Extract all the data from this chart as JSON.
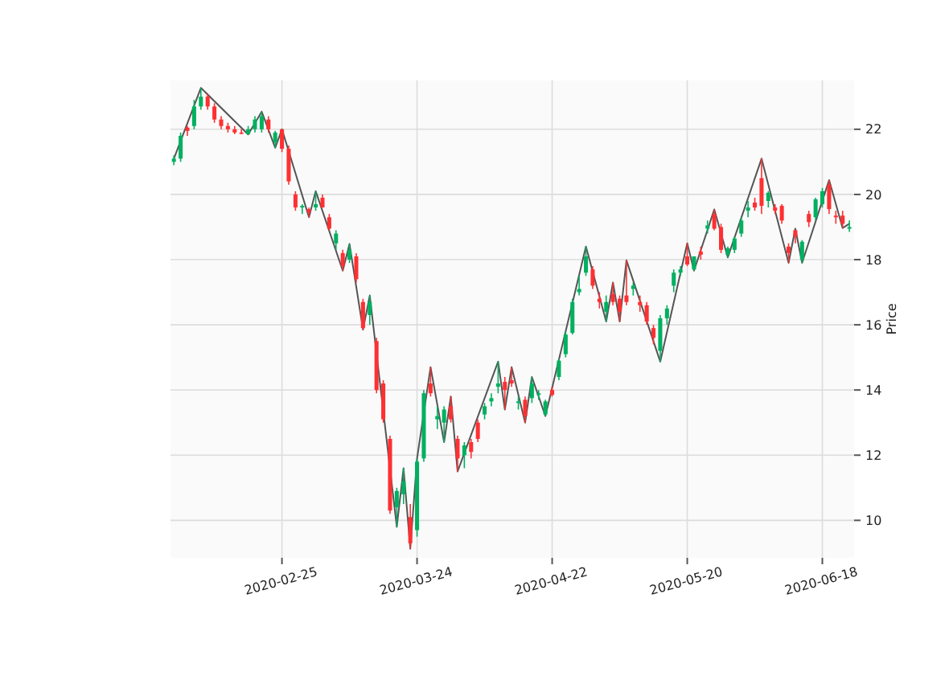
{
  "chart_data": {
    "type": "candlestick",
    "ylabel": "Price",
    "ylim": [
      8.85,
      23.5
    ],
    "yticks": [
      10,
      12,
      14,
      16,
      18,
      20,
      22
    ],
    "grid": true,
    "categories": [
      null,
      null,
      null,
      null,
      null,
      null,
      null,
      null,
      null,
      null,
      null,
      null,
      null,
      null,
      null,
      null,
      "2020-02-25",
      null,
      null,
      null,
      null,
      null,
      null,
      null,
      null,
      null,
      null,
      null,
      null,
      null,
      null,
      null,
      null,
      null,
      null,
      null,
      "2020-03-24",
      null,
      null,
      null,
      null,
      null,
      null,
      null,
      null,
      null,
      null,
      null,
      null,
      null,
      null,
      null,
      null,
      null,
      null,
      null,
      "2020-04-22",
      null,
      null,
      null,
      null,
      null,
      null,
      null,
      null,
      null,
      null,
      null,
      null,
      null,
      null,
      null,
      null,
      null,
      null,
      null,
      "2020-05-20",
      null,
      null,
      null,
      null,
      null,
      null,
      null,
      null,
      null,
      null,
      null,
      null,
      null,
      null,
      null,
      null,
      null,
      null,
      null,
      "2020-06-18",
      null,
      null,
      null,
      null
    ],
    "ohlc": [
      [
        21.0,
        21.2,
        20.9,
        21.1
      ],
      [
        21.1,
        21.9,
        21.0,
        21.8
      ],
      [
        22.05,
        22.1,
        21.8,
        21.95
      ],
      [
        22.1,
        22.9,
        22.0,
        22.7
      ],
      [
        22.7,
        23.27,
        22.6,
        23.0
      ],
      [
        23.0,
        23.1,
        22.6,
        22.7
      ],
      [
        22.7,
        22.8,
        22.2,
        22.3
      ],
      [
        22.3,
        22.4,
        22.0,
        22.1
      ],
      [
        22.1,
        22.2,
        21.9,
        22.0
      ],
      [
        22.0,
        22.1,
        21.85,
        21.9
      ],
      [
        21.9,
        22.0,
        21.85,
        21.88
      ],
      [
        21.85,
        22.1,
        21.84,
        22.0
      ],
      [
        22.0,
        22.4,
        21.9,
        22.3
      ],
      [
        22.0,
        22.54,
        21.9,
        22.4
      ],
      [
        22.3,
        22.4,
        21.9,
        22.0
      ],
      [
        21.6,
        21.95,
        21.43,
        21.9
      ],
      [
        22.0,
        22.0,
        21.3,
        21.4
      ],
      [
        21.4,
        21.5,
        20.3,
        20.4
      ],
      [
        20.0,
        20.1,
        19.5,
        19.6
      ],
      [
        19.6,
        19.7,
        19.4,
        19.65
      ],
      [
        19.55,
        19.6,
        19.3,
        19.45
      ],
      [
        19.6,
        20.1,
        19.5,
        19.7
      ],
      [
        19.9,
        20.0,
        19.6,
        19.6
      ],
      [
        19.3,
        19.4,
        18.9,
        18.95
      ],
      [
        18.5,
        18.9,
        18.3,
        18.8
      ],
      [
        18.2,
        18.3,
        17.66,
        17.8
      ],
      [
        18.0,
        18.48,
        17.9,
        18.3
      ],
      [
        18.1,
        18.2,
        17.3,
        17.4
      ],
      [
        16.7,
        16.8,
        15.85,
        15.9
      ],
      [
        16.3,
        16.9,
        16.0,
        16.7
      ],
      [
        15.5,
        15.6,
        13.9,
        14.0
      ],
      [
        14.2,
        14.3,
        13.0,
        13.1
      ],
      [
        12.5,
        12.6,
        10.2,
        10.3
      ],
      [
        10.4,
        11.0,
        9.8,
        10.9
      ],
      [
        10.8,
        11.6,
        10.5,
        11.2
      ],
      [
        10.1,
        10.5,
        9.13,
        9.3
      ],
      [
        9.7,
        11.9,
        9.5,
        11.8
      ],
      [
        11.9,
        14.0,
        11.8,
        13.9
      ],
      [
        14.2,
        14.7,
        13.8,
        13.9
      ],
      [
        13.1,
        13.5,
        12.8,
        13.2
      ],
      [
        13.0,
        13.5,
        12.4,
        13.4
      ],
      [
        13.5,
        13.8,
        13.0,
        13.1
      ],
      [
        12.5,
        12.6,
        11.5,
        11.9
      ],
      [
        12.0,
        12.4,
        11.6,
        12.3
      ],
      [
        12.4,
        12.5,
        11.9,
        12.1
      ],
      [
        13.0,
        13.1,
        12.4,
        12.5
      ],
      [
        13.25,
        13.6,
        13.1,
        13.5
      ],
      [
        13.65,
        13.9,
        13.5,
        13.75
      ],
      [
        14.1,
        14.87,
        13.9,
        14.2
      ],
      [
        14.25,
        14.4,
        13.4,
        14.0
      ],
      [
        14.3,
        14.7,
        14.1,
        14.2
      ],
      [
        13.6,
        13.8,
        13.4,
        13.65
      ],
      [
        13.7,
        13.8,
        13.0,
        13.2
      ],
      [
        13.75,
        14.4,
        13.6,
        14.2
      ],
      [
        13.85,
        14.0,
        13.7,
        13.9
      ],
      [
        13.25,
        13.7,
        13.2,
        13.65
      ],
      [
        14.0,
        14.1,
        13.8,
        13.85
      ],
      [
        14.4,
        14.95,
        14.3,
        14.9
      ],
      [
        15.1,
        15.8,
        15.0,
        15.7
      ],
      [
        15.75,
        16.8,
        15.7,
        16.7
      ],
      [
        17.0,
        17.5,
        16.9,
        17.1
      ],
      [
        17.6,
        18.4,
        17.5,
        18.1
      ],
      [
        17.7,
        17.8,
        17.1,
        17.2
      ],
      [
        16.8,
        17.0,
        16.5,
        16.7
      ],
      [
        16.4,
        16.9,
        16.1,
        16.7
      ],
      [
        16.95,
        17.3,
        16.6,
        16.7
      ],
      [
        16.8,
        16.9,
        16.1,
        16.4
      ],
      [
        16.9,
        17.98,
        16.6,
        16.7
      ],
      [
        17.1,
        17.3,
        16.9,
        17.2
      ],
      [
        16.7,
        16.9,
        16.4,
        16.6
      ],
      [
        16.6,
        16.7,
        16.0,
        16.1
      ],
      [
        15.9,
        16.0,
        15.4,
        15.6
      ],
      [
        15.2,
        16.3,
        14.87,
        16.2
      ],
      [
        16.2,
        16.6,
        16.0,
        16.5
      ],
      [
        17.2,
        17.7,
        17.0,
        17.6
      ],
      [
        17.6,
        17.8,
        17.5,
        17.7
      ],
      [
        18.1,
        18.5,
        17.8,
        17.85
      ],
      [
        17.7,
        18.1,
        17.66,
        18.1
      ],
      [
        18.25,
        18.4,
        18.0,
        18.15
      ],
      [
        18.95,
        19.2,
        18.8,
        19.05
      ],
      [
        19.4,
        19.54,
        18.9,
        18.95
      ],
      [
        19.0,
        19.1,
        18.2,
        18.3
      ],
      [
        18.15,
        18.4,
        18.07,
        18.35
      ],
      [
        18.3,
        18.7,
        18.2,
        18.65
      ],
      [
        18.8,
        19.3,
        18.7,
        19.2
      ],
      [
        19.5,
        19.8,
        19.3,
        19.6
      ],
      [
        19.75,
        19.9,
        19.5,
        19.6
      ],
      [
        20.5,
        21.1,
        19.4,
        19.65
      ],
      [
        19.8,
        20.1,
        19.6,
        20.05
      ],
      [
        19.6,
        19.7,
        19.4,
        19.5
      ],
      [
        19.65,
        19.7,
        19.1,
        19.2
      ],
      [
        18.4,
        18.5,
        17.9,
        18.2
      ],
      [
        18.9,
        18.9,
        18.5,
        18.7
      ],
      [
        18.0,
        18.6,
        17.9,
        18.55
      ],
      [
        19.4,
        19.5,
        19.0,
        19.15
      ],
      [
        19.3,
        19.9,
        19.2,
        19.85
      ],
      [
        19.7,
        20.2,
        19.6,
        20.1
      ],
      [
        20.3,
        20.44,
        19.4,
        19.55
      ],
      [
        19.35,
        19.5,
        19.1,
        19.3
      ],
      [
        19.35,
        19.5,
        18.97,
        19.1
      ],
      [
        18.95,
        19.2,
        18.85,
        19.0
      ]
    ],
    "colors": [
      "#00b060",
      "#00b060",
      "#fe3032",
      "#00b060",
      "#00b060",
      "#fe3032",
      "#fe3032",
      "#fe3032",
      "#fe3032",
      "#fe3032",
      "#fe3032",
      "#00b060",
      "#00b060",
      "#00b060",
      "#fe3032",
      "#00b060",
      "#fe3032",
      "#fe3032",
      "#fe3032",
      "#00b060",
      "#fe3032",
      "#00b060",
      "#fe3032",
      "#fe3032",
      "#00b060",
      "#fe3032",
      "#00b060",
      "#fe3032",
      "#fe3032",
      "#00b060",
      "#fe3032",
      "#fe3032",
      "#fe3032",
      "#00b060",
      "#00b060",
      "#fe3032",
      "#00b060",
      "#00b060",
      "#fe3032",
      "#00b060",
      "#00b060",
      "#fe3032",
      "#fe3032",
      "#00b060",
      "#fe3032",
      "#fe3032",
      "#00b060",
      "#00b060",
      "#00b060",
      "#fe3032",
      "#fe3032",
      "#00b060",
      "#fe3032",
      "#00b060",
      "#00b060",
      "#00b060",
      "#fe3032",
      "#00b060",
      "#00b060",
      "#00b060",
      "#00b060",
      "#00b060",
      "#fe3032",
      "#fe3032",
      "#00b060",
      "#fe3032",
      "#fe3032",
      "#fe3032",
      "#00b060",
      "#fe3032",
      "#fe3032",
      "#fe3032",
      "#00b060",
      "#00b060",
      "#00b060",
      "#00b060",
      "#fe3032",
      "#00b060",
      "#fe3032",
      "#00b060",
      "#fe3032",
      "#fe3032",
      "#00b060",
      "#00b060",
      "#00b060",
      "#00b060",
      "#fe3032",
      "#fe3032",
      "#00b060",
      "#fe3032",
      "#fe3032",
      "#fe3032",
      "#fe3032",
      "#00b060",
      "#fe3032",
      "#00b060",
      "#00b060",
      "#fe3032",
      "#fe3032",
      "#fe3032",
      "#00b060"
    ],
    "series": [
      {
        "type": "line",
        "color": "#555555",
        "values": [
          21.1,
          null,
          null,
          null,
          23.27,
          null,
          null,
          null,
          null,
          null,
          null,
          21.84,
          null,
          22.54,
          null,
          21.43,
          22.0,
          null,
          null,
          null,
          19.3,
          20.1,
          null,
          null,
          null,
          17.66,
          18.48,
          null,
          15.85,
          16.9,
          null,
          null,
          null,
          9.8,
          11.6,
          9.13,
          11.9,
          null,
          14.7,
          null,
          12.4,
          13.8,
          11.5,
          null,
          null,
          null,
          null,
          null,
          14.87,
          13.4,
          14.7,
          null,
          13.0,
          14.4,
          null,
          13.2,
          null,
          null,
          null,
          null,
          null,
          18.4,
          null,
          null,
          16.1,
          17.3,
          16.1,
          17.98,
          null,
          null,
          null,
          null,
          14.87,
          null,
          null,
          null,
          18.5,
          17.66,
          null,
          null,
          19.54,
          null,
          18.07,
          null,
          null,
          null,
          null,
          21.1,
          null,
          null,
          null,
          17.9,
          18.95,
          17.9,
          null,
          null,
          null,
          20.44,
          null,
          18.97,
          19.1
        ]
      }
    ]
  }
}
